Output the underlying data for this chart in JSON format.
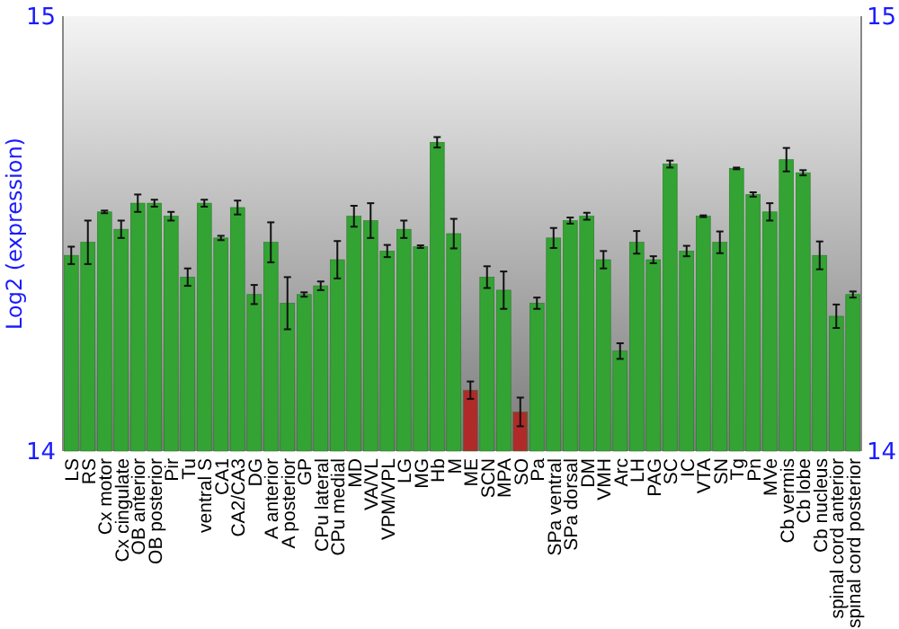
{
  "chart_data": {
    "type": "bar",
    "ylabel": "Log2 (expression)",
    "categories": [
      "LS",
      "RS",
      "Cx motor",
      "Cx cingulate",
      "OB anterior",
      "OB posterior",
      "Pir",
      "Tu",
      "ventral S",
      "CA1",
      "CA2/CA3",
      "DG",
      "A anterior",
      "A posterior",
      "GP",
      "CPu lateral",
      "CPu medial",
      "MD",
      "VA/VL",
      "VPM/VPL",
      "LG",
      "MG",
      "Hb",
      "M",
      "ME",
      "SCN",
      "MPA",
      "SO",
      "Pa",
      "SPa ventral",
      "SPa dorsal",
      "DM",
      "VMH",
      "Arc",
      "LH",
      "PAG",
      "SC",
      "IC",
      "VTA",
      "SN",
      "Tg",
      "Pn",
      "MVe",
      "Cb vermis",
      "Cb lobe",
      "Cb nucleus",
      "spinal cord anterior",
      "spinal cord posterior"
    ],
    "values": [
      14.45,
      14.48,
      14.55,
      14.51,
      14.57,
      14.57,
      14.54,
      14.4,
      14.57,
      14.49,
      14.56,
      14.36,
      14.48,
      14.34,
      14.36,
      14.38,
      14.44,
      14.54,
      14.53,
      14.46,
      14.51,
      14.47,
      14.71,
      14.5,
      14.14,
      14.4,
      14.37,
      14.09,
      14.34,
      14.49,
      14.53,
      14.54,
      14.44,
      14.23,
      14.48,
      14.44,
      14.66,
      14.46,
      14.54,
      14.48,
      14.65,
      14.59,
      14.55,
      14.67,
      14.64,
      14.45,
      14.31,
      14.36
    ],
    "errors": [
      0.02,
      0.05,
      0.003,
      0.02,
      0.02,
      0.008,
      0.01,
      0.02,
      0.008,
      0.005,
      0.016,
      0.022,
      0.046,
      0.06,
      0.005,
      0.01,
      0.043,
      0.024,
      0.04,
      0.014,
      0.02,
      0.003,
      0.012,
      0.034,
      0.02,
      0.025,
      0.043,
      0.033,
      0.013,
      0.023,
      0.007,
      0.008,
      0.02,
      0.018,
      0.026,
      0.008,
      0.008,
      0.012,
      0.002,
      0.025,
      0.002,
      0.005,
      0.02,
      0.027,
      0.006,
      0.032,
      0.027,
      0.007
    ],
    "colors": [
      "#33a333",
      "#33a333",
      "#33a333",
      "#33a333",
      "#33a333",
      "#33a333",
      "#33a333",
      "#33a333",
      "#33a333",
      "#33a333",
      "#33a333",
      "#33a333",
      "#33a333",
      "#33a333",
      "#33a333",
      "#33a333",
      "#33a333",
      "#33a333",
      "#33a333",
      "#33a333",
      "#33a333",
      "#33a333",
      "#33a333",
      "#33a333",
      "#b02a2a",
      "#33a333",
      "#33a333",
      "#b02a2a",
      "#33a333",
      "#33a333",
      "#33a333",
      "#33a333",
      "#33a333",
      "#33a333",
      "#33a333",
      "#33a333",
      "#33a333",
      "#33a333",
      "#33a333",
      "#33a333",
      "#33a333",
      "#33a333",
      "#33a333",
      "#33a333",
      "#33a333",
      "#33a333",
      "#33a333",
      "#33a333"
    ],
    "ylim": [
      14,
      15
    ],
    "yticks": [
      14,
      15
    ],
    "y2lim": [
      14,
      15
    ],
    "y2ticks": [
      14,
      15
    ],
    "grid": false
  }
}
